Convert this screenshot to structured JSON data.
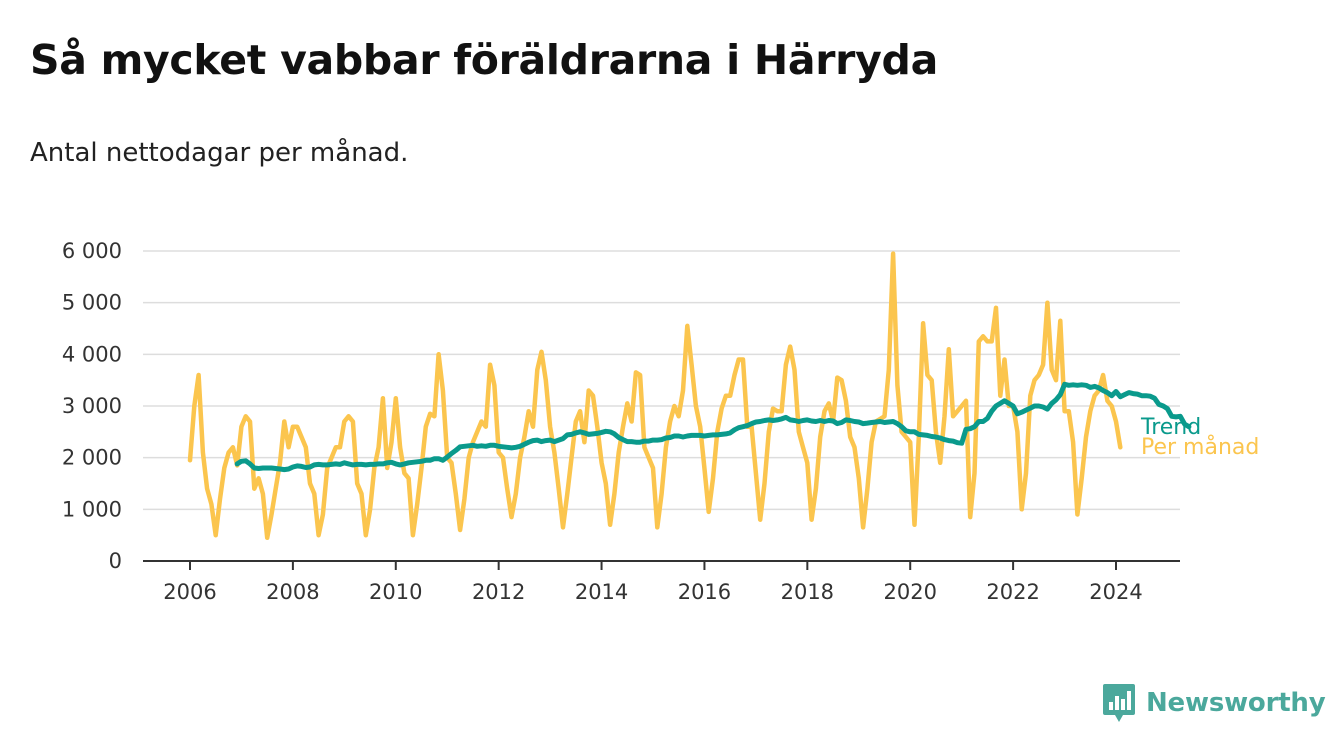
{
  "title": "Så mycket vabbar föräldrarna i Härryda",
  "subtitle": "Antal nettodagar per månad.",
  "brand": {
    "name": "Newsworthy",
    "icon": "newsworthy-logo-icon"
  },
  "colors": {
    "trend": "#0a9a8c",
    "monthly": "#fbc54e",
    "grid": "#dddddd",
    "axis": "#333333",
    "brand": "#4ba89c"
  },
  "chart_data": {
    "type": "line",
    "title": "Så mycket vabbar föräldrarna i Härryda",
    "subtitle": "Antal nettodagar per månad.",
    "x_ticks": [
      "2006",
      "2008",
      "2010",
      "2012",
      "2014",
      "2016",
      "2018",
      "2020",
      "2022",
      "2024"
    ],
    "y_ticks": [
      "0",
      "1 000",
      "2 000",
      "3 000",
      "4 000",
      "5 000",
      "6 000"
    ],
    "ylim": [
      0,
      6000
    ],
    "xlim": [
      2005.0,
      2025.0
    ],
    "grid": true,
    "legend": "series labels at line ends (right)",
    "series": [
      {
        "name": "Per månad",
        "x_start": "2006-01",
        "frequency": "monthly",
        "values": [
          1950,
          3000,
          3600,
          2100,
          1400,
          1100,
          500,
          1200,
          1800,
          2100,
          2200,
          1850,
          2600,
          2800,
          2700,
          1400,
          1600,
          1300,
          450,
          900,
          1400,
          1900,
          2700,
          2200,
          2600,
          2600,
          2400,
          2200,
          1500,
          1300,
          500,
          900,
          1800,
          2000,
          2200,
          2200,
          2700,
          2800,
          2700,
          1500,
          1300,
          500,
          1000,
          1800,
          2200,
          3150,
          1800,
          2300,
          3150,
          2200,
          1700,
          1600,
          500,
          1100,
          1800,
          2600,
          2850,
          2800,
          4000,
          3300,
          2000,
          1900,
          1300,
          600,
          1200,
          2000,
          2300,
          2500,
          2700,
          2600,
          3800,
          3400,
          2100,
          2000,
          1400,
          850,
          1300,
          2000,
          2400,
          2900,
          2600,
          3700,
          4050,
          3500,
          2600,
          2100,
          1400,
          650,
          1300,
          2000,
          2700,
          2900,
          2300,
          3300,
          3200,
          2600,
          1900,
          1500,
          700,
          1300,
          2100,
          2600,
          3050,
          2700,
          3650,
          3600,
          2200,
          2000,
          1800,
          650,
          1300,
          2200,
          2700,
          3000,
          2800,
          3300,
          4550,
          3800,
          3000,
          2600,
          1800,
          950,
          1600,
          2500,
          2950,
          3200,
          3200,
          3600,
          3900,
          3900,
          2600,
          2600,
          1700,
          800,
          1500,
          2500,
          2950,
          2900,
          2900,
          3800,
          4150,
          3700,
          2500,
          2200,
          1900,
          800,
          1400,
          2400,
          2900,
          3050,
          2700,
          3550,
          3500,
          3100,
          2400,
          2200,
          1600,
          650,
          1400,
          2300,
          2700,
          2750,
          2800,
          3700,
          5950,
          3400,
          2500,
          2400,
          2300,
          700,
          2400,
          4600,
          3600,
          3500,
          2500,
          1900,
          2800,
          4100,
          2800,
          2900,
          3000,
          3100,
          850,
          1700,
          4250,
          4350,
          4250,
          4250,
          4900,
          3200,
          3900,
          3000,
          3000,
          2500,
          1000,
          1700,
          3200,
          3500,
          3600,
          3800,
          5000,
          3700,
          3500,
          4650,
          2900,
          2900,
          2300,
          900,
          1600,
          2400,
          2900,
          3200,
          3300,
          3600,
          3100,
          3000,
          2700,
          2200
        ]
      },
      {
        "name": "Trend",
        "x_start": "2006-12",
        "frequency": "monthly",
        "values": [
          1880,
          1930,
          1940,
          1880,
          1800,
          1790,
          1800,
          1800,
          1800,
          1790,
          1780,
          1770,
          1780,
          1820,
          1840,
          1830,
          1810,
          1820,
          1860,
          1870,
          1860,
          1860,
          1870,
          1880,
          1870,
          1900,
          1880,
          1860,
          1870,
          1870,
          1860,
          1870,
          1870,
          1880,
          1880,
          1900,
          1910,
          1880,
          1860,
          1880,
          1900,
          1910,
          1920,
          1930,
          1950,
          1950,
          1980,
          1980,
          1950,
          2010,
          2080,
          2140,
          2210,
          2220,
          2230,
          2240,
          2220,
          2230,
          2220,
          2240,
          2240,
          2220,
          2210,
          2200,
          2190,
          2200,
          2220,
          2260,
          2300,
          2330,
          2340,
          2310,
          2330,
          2340,
          2310,
          2340,
          2370,
          2440,
          2450,
          2480,
          2500,
          2480,
          2450,
          2460,
          2470,
          2490,
          2510,
          2500,
          2460,
          2390,
          2350,
          2310,
          2310,
          2300,
          2300,
          2320,
          2320,
          2340,
          2340,
          2350,
          2380,
          2390,
          2420,
          2420,
          2400,
          2420,
          2430,
          2430,
          2430,
          2420,
          2430,
          2440,
          2440,
          2450,
          2460,
          2480,
          2540,
          2580,
          2600,
          2620,
          2660,
          2690,
          2700,
          2720,
          2730,
          2720,
          2730,
          2750,
          2780,
          2730,
          2720,
          2700,
          2720,
          2730,
          2710,
          2700,
          2720,
          2700,
          2720,
          2710,
          2660,
          2680,
          2730,
          2720,
          2700,
          2690,
          2660,
          2670,
          2680,
          2690,
          2700,
          2680,
          2690,
          2700,
          2660,
          2600,
          2520,
          2500,
          2500,
          2450,
          2440,
          2430,
          2410,
          2400,
          2380,
          2350,
          2330,
          2320,
          2290,
          2280,
          2550,
          2560,
          2600,
          2700,
          2700,
          2760,
          2900,
          3000,
          3050,
          3100,
          3050,
          3000,
          2850,
          2880,
          2920,
          2960,
          3000,
          3000,
          2980,
          2940,
          3050,
          3120,
          3220,
          3420,
          3400,
          3410,
          3400,
          3410,
          3400,
          3360,
          3380,
          3350,
          3300,
          3260,
          3200,
          3280,
          3180,
          3220,
          3260,
          3240,
          3230,
          3200,
          3200,
          3190,
          3150,
          3030,
          3000,
          2950,
          2800,
          2790,
          2800,
          2650,
          2600
        ]
      }
    ]
  }
}
